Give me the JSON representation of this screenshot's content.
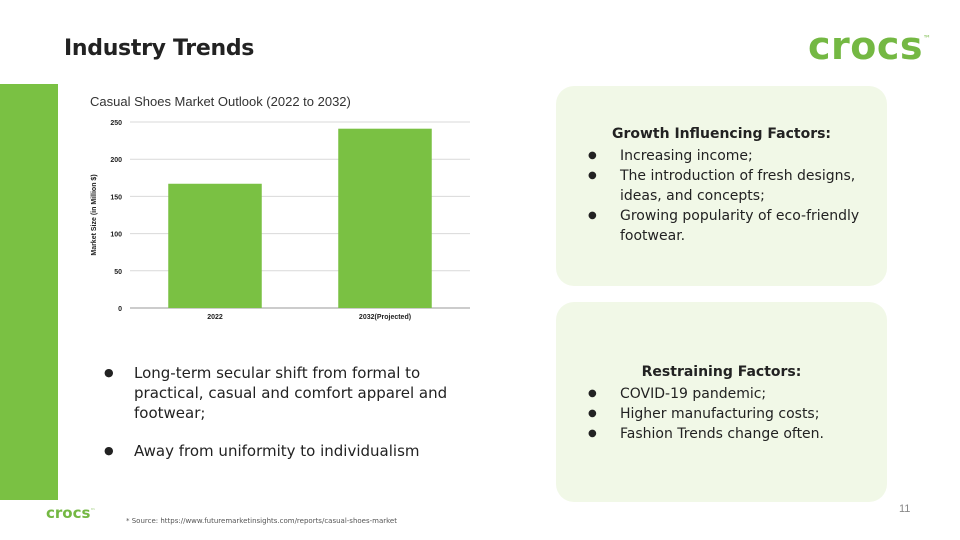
{
  "slide": {
    "title": "Industry Trends",
    "logo_text": "crocs",
    "logo_tm": "™",
    "footer_logo_text": "crocs",
    "footer_logo_tm": "™",
    "source": "* Source: https://www.futuremarketinsights.com/reports/casual-shoes-market",
    "page_number": "11",
    "accent_color": "#7ac143"
  },
  "chart_data": {
    "type": "bar",
    "title": "Casual Shoes Market Outlook (2022 to 2032)",
    "categories": [
      "2022",
      "2032(Projected)"
    ],
    "values": [
      167,
      241
    ],
    "xlabel": "",
    "ylabel": "Market Size (in Million $)",
    "ylim": [
      0,
      250
    ],
    "yticks": [
      0,
      50,
      100,
      150,
      200,
      250
    ],
    "grid": true,
    "bar_color": "#7ac143"
  },
  "growth_card": {
    "heading": "Growth Influencing Factors:",
    "items": [
      "Increasing income;",
      "The introduction of fresh designs, ideas, and concepts;",
      "Growing popularity of eco-friendly footwear."
    ]
  },
  "restraining_card": {
    "heading": "Restraining Factors:",
    "items": [
      "COVID-19 pandemic;",
      "Higher manufacturing costs;",
      "Fashion Trends change often."
    ]
  },
  "trend_bullets": [
    "Long-term secular shift from formal to practical, casual and comfort apparel and footwear;",
    "Away from uniformity to individualism"
  ]
}
